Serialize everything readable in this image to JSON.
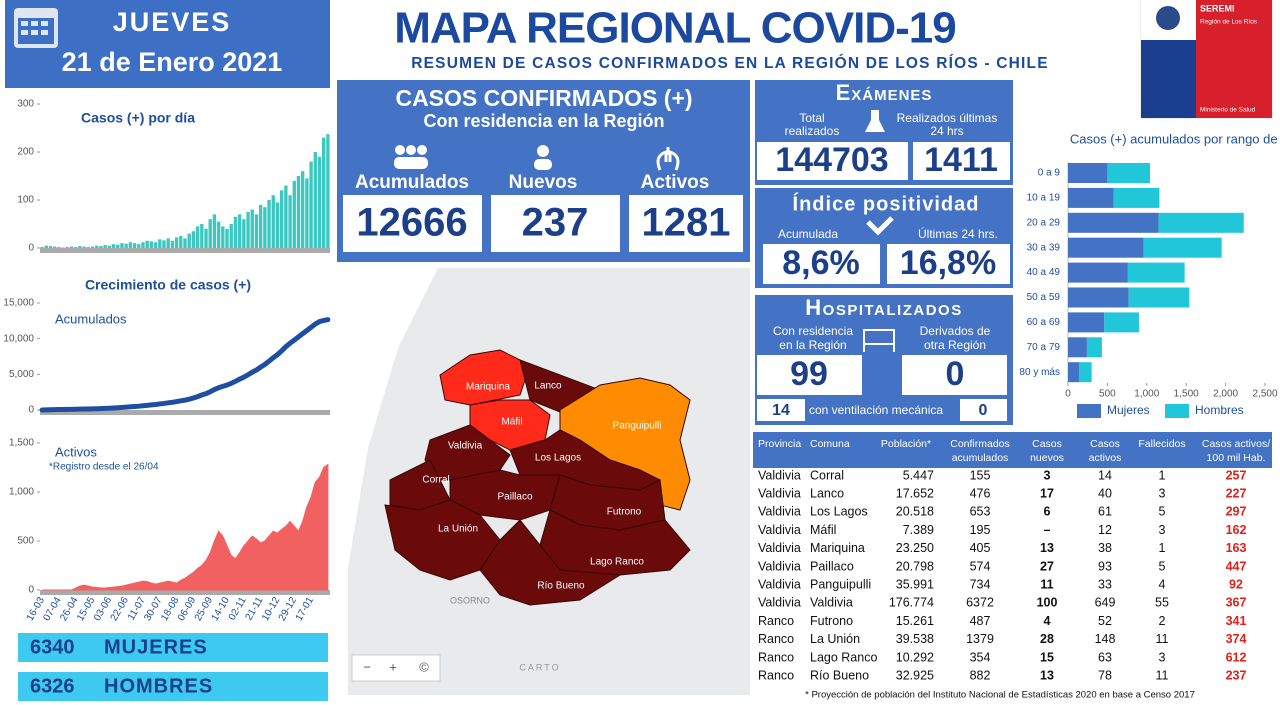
{
  "header": {
    "day": "JUEVES",
    "date": "21 de Enero 2021",
    "title": "MAPA REGIONAL COVID-19",
    "subtitle": "RESUMEN DE CASOS CONFIRMADOS EN LA REGIÓN DE LOS RÍOS - CHILE"
  },
  "logo": {
    "unit": "SEREMI",
    "region": "Región de Los Ríos",
    "ministry": "Ministerio de Salud"
  },
  "confirmed": {
    "title": "CASOS CONFIRMADOS (+)",
    "subtitle": "Con residencia en la Región",
    "items": [
      {
        "label": "Acumulados",
        "value": 12666
      },
      {
        "label": "Nuevos",
        "value": 237
      },
      {
        "label": "Activos",
        "value": 1281
      }
    ]
  },
  "exams": {
    "title": "Exámenes",
    "total_label": [
      "Total",
      "realizados"
    ],
    "total": 144703,
    "recent_label": [
      "Realizados últimas",
      "24 hrs"
    ],
    "recent": 1411
  },
  "positivity": {
    "title": "Índice positividad",
    "cumulative_label": "Acumulada",
    "cumulative": "8,6%",
    "recent_label": "Últimas 24 hrs.",
    "recent": "16,8%"
  },
  "hospitalized": {
    "title": "Hospitalizados",
    "resident_label": [
      "Con  residencia",
      "en la Región"
    ],
    "resident": 99,
    "transferred_label": [
      "Derivados de",
      "otra Región"
    ],
    "transferred": 0,
    "ventilated": 14,
    "ventilation_label": "con ventilación mecánica",
    "ventilated_transferred": 0
  },
  "gender": [
    {
      "value": 6340,
      "label": "MUJERES"
    },
    {
      "value": 6326,
      "label": "HOMBRES"
    }
  ],
  "map": {
    "communes": [
      "Mariquina",
      "Lanco",
      "Máfil",
      "Panguipulli",
      "Valdivia",
      "Los Lagos",
      "Corral",
      "Paillaco",
      "Futrono",
      "La Unión",
      "Lago Ranco",
      "Río Bueno"
    ],
    "other_labels": [
      "OSORNO",
      "CARTO"
    ],
    "controls": [
      "−",
      "+",
      "©"
    ]
  },
  "table": {
    "header": [
      [
        "Provincia"
      ],
      [
        "Comuna"
      ],
      [
        "Población*"
      ],
      [
        "Confirmados",
        "acumulados"
      ],
      [
        "Casos",
        "nuevos"
      ],
      [
        "Casos",
        "activos"
      ],
      [
        "Fallecidos"
      ],
      [
        "Casos activos/",
        "100 mil Hab."
      ]
    ],
    "rows": [
      [
        "Valdivia",
        "Corral",
        "5.447",
        "155",
        "3",
        "14",
        "1",
        "257"
      ],
      [
        "Valdivia",
        "Lanco",
        "17.652",
        "476",
        "17",
        "40",
        "3",
        "227"
      ],
      [
        "Valdivia",
        "Los Lagos",
        "20.518",
        "653",
        "6",
        "61",
        "5",
        "297"
      ],
      [
        "Valdivia",
        "Máfil",
        "7.389",
        "195",
        "–",
        "12",
        "3",
        "162"
      ],
      [
        "Valdivia",
        "Mariquina",
        "23.250",
        "405",
        "13",
        "38",
        "1",
        "163"
      ],
      [
        "Valdivia",
        "Paillaco",
        "20.798",
        "574",
        "27",
        "93",
        "5",
        "447"
      ],
      [
        "Valdivia",
        "Panguipulli",
        "35.991",
        "734",
        "11",
        "33",
        "4",
        "92"
      ],
      [
        "Valdivia",
        "Valdivia",
        "176.774",
        "6372",
        "100",
        "649",
        "55",
        "367"
      ],
      [
        "Ranco",
        "Futrono",
        "15.261",
        "487",
        "4",
        "52",
        "2",
        "341"
      ],
      [
        "Ranco",
        "La Unión",
        "39.538",
        "1379",
        "28",
        "148",
        "11",
        "374"
      ],
      [
        "Ranco",
        "Lago Ranco",
        "10.292",
        "354",
        "15",
        "63",
        "3",
        "612"
      ],
      [
        "Ranco",
        "Río Bueno",
        "32.925",
        "882",
        "13",
        "78",
        "11",
        "237"
      ]
    ],
    "footnote": "*  Proyección de población del Instituto Nacional de Estadísticas 2020 en base a Censo 2017"
  },
  "chart_data": [
    {
      "type": "bar",
      "title": "Casos (+) por día",
      "color": "#3cc8c0",
      "ylim": [
        0,
        300
      ],
      "yticks": [
        0,
        100,
        200,
        300
      ],
      "values": [
        2,
        5,
        4,
        3,
        2,
        1,
        2,
        3,
        2,
        4,
        3,
        2,
        3,
        5,
        4,
        6,
        5,
        8,
        7,
        10,
        9,
        12,
        10,
        8,
        12,
        15,
        14,
        12,
        18,
        16,
        20,
        15,
        22,
        25,
        20,
        30,
        35,
        45,
        50,
        40,
        60,
        70,
        55,
        45,
        40,
        50,
        65,
        70,
        60,
        75,
        80,
        70,
        90,
        85,
        100,
        110,
        95,
        120,
        130,
        110,
        140,
        150,
        160,
        145,
        180,
        200,
        190,
        230,
        237
      ]
    },
    {
      "type": "line",
      "title": "Crecimiento de casos (+)",
      "annotation": "Acumulados",
      "color": "#1f4ea0",
      "ylim": [
        0,
        15000
      ],
      "yticks": [
        0,
        {
          "value": 5000,
          "label": "5,000"
        },
        {
          "value": 10000,
          "label": "10,000"
        },
        {
          "value": 15000,
          "label": "15,000"
        }
      ],
      "values": [
        0,
        20,
        40,
        55,
        70,
        75,
        85,
        95,
        105,
        120,
        135,
        145,
        160,
        180,
        200,
        225,
        250,
        285,
        315,
        360,
        400,
        450,
        495,
        535,
        590,
        655,
        715,
        770,
        850,
        920,
        1010,
        1080,
        1180,
        1290,
        1380,
        1520,
        1680,
        1880,
        2110,
        2290,
        2560,
        2870,
        3120,
        3320,
        3500,
        3730,
        4020,
        4330,
        4600,
        4940,
        5300,
        5610,
        6010,
        6390,
        6840,
        7330,
        7760,
        8300,
        8880,
        9370,
        9800,
        10250,
        10700,
        11150,
        11600,
        12050,
        12400,
        12550,
        12666
      ]
    },
    {
      "type": "area",
      "title": "Activos",
      "annotation": "*Registro desde el 26/04",
      "color": "#f26161",
      "ylim": [
        0,
        1500
      ],
      "yticks": [
        0,
        500,
        {
          "value": 1000,
          "label": "1,000"
        },
        {
          "value": 1500,
          "label": "1,500"
        }
      ],
      "categories": [
        "16-03",
        null,
        null,
        null,
        "07-04",
        null,
        null,
        null,
        "26-04",
        null,
        null,
        null,
        "15-05",
        null,
        null,
        null,
        "03-06",
        null,
        null,
        null,
        "22-06",
        null,
        null,
        null,
        "11-07",
        null,
        null,
        null,
        "30-07",
        null,
        null,
        null,
        "18-08",
        null,
        null,
        null,
        "06-09",
        null,
        null,
        null,
        "25-09",
        null,
        null,
        null,
        "14-10",
        null,
        null,
        null,
        "02-11",
        null,
        null,
        null,
        "21-11",
        null,
        null,
        null,
        "10-12",
        null,
        null,
        null,
        "29-12",
        null,
        null,
        null,
        "17-01",
        null,
        null,
        null,
        null
      ],
      "values": [
        0,
        0,
        0,
        0,
        0,
        0,
        0,
        0,
        20,
        40,
        50,
        40,
        30,
        25,
        20,
        20,
        25,
        30,
        35,
        40,
        50,
        60,
        70,
        80,
        90,
        85,
        70,
        60,
        70,
        80,
        90,
        80,
        70,
        100,
        120,
        150,
        180,
        220,
        250,
        300,
        380,
        500,
        600,
        550,
        450,
        350,
        320,
        380,
        450,
        500,
        550,
        520,
        480,
        500,
        550,
        600,
        580,
        620,
        650,
        700,
        650,
        600,
        700,
        850,
        950,
        1100,
        1150,
        1250,
        1281
      ]
    },
    {
      "type": "bar",
      "horizontal": true,
      "stacked": true,
      "title": "Casos (+) acumulados por rango de edad",
      "categories": [
        "0 a 9",
        "10 a 19",
        "20 a 29",
        "30 a 39",
        "40 a 49",
        "50 a 59",
        "60 a 69",
        "70 a 79",
        "80 y más"
      ],
      "series": [
        {
          "name": "Mujeres",
          "color": "#4472c4",
          "values": [
            500,
            580,
            1150,
            960,
            760,
            770,
            460,
            240,
            140
          ]
        },
        {
          "name": "Hombres",
          "color": "#21c6d8",
          "values": [
            540,
            580,
            1080,
            990,
            720,
            770,
            440,
            190,
            160
          ]
        }
      ],
      "xlim": [
        0,
        2500
      ],
      "xticks": [
        0,
        500,
        {
          "value": 1000,
          "label": "1,000"
        },
        {
          "value": 1500,
          "label": "1,500"
        },
        {
          "value": 2000,
          "label": "2,000"
        },
        {
          "value": 2500,
          "label": "2,500"
        }
      ]
    }
  ]
}
